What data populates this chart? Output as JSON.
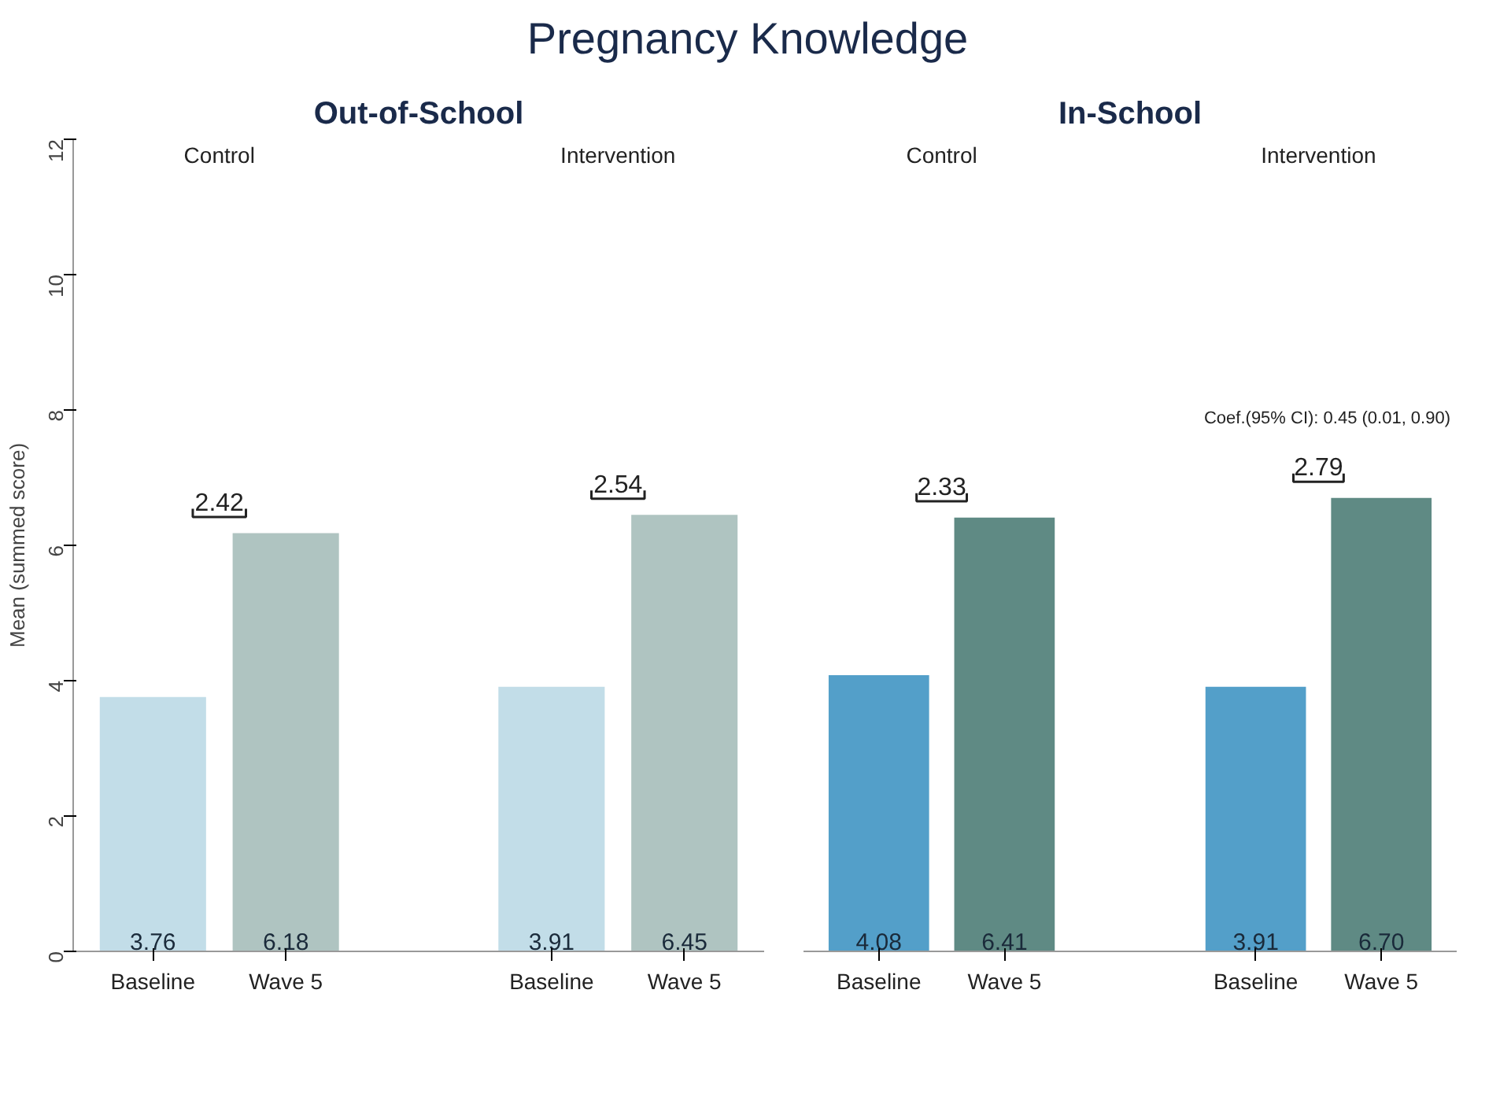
{
  "chart_data": [
    {
      "type": "bar",
      "title": "Pregnancy Knowledge",
      "subtitle": "Out-of-School",
      "ylabel": "Mean (summed score)",
      "categories": [
        "Baseline",
        "Wave 5",
        "Baseline",
        "Wave 5"
      ],
      "values": [
        3.76,
        6.18,
        3.91,
        6.45
      ],
      "value_labels": [
        "3.76",
        "6.18",
        "3.91",
        "6.45"
      ],
      "colors": [
        "#c2dde8",
        "#afc4c1",
        "#c2dde8",
        "#afc4c1"
      ],
      "ylim": [
        0,
        12
      ],
      "yticks": [
        0,
        2,
        4,
        6,
        8,
        10,
        12
      ],
      "grid": false,
      "annotations": [
        "Control",
        "Intervention",
        "2.42",
        "2.54"
      ]
    },
    {
      "type": "bar",
      "subtitle": "In-School",
      "categories": [
        "Baseline",
        "Wave 5",
        "Baseline",
        "Wave 5"
      ],
      "values": [
        4.08,
        6.41,
        3.91,
        6.7
      ],
      "value_labels": [
        "4.08",
        "6.41",
        "3.91",
        "6.70"
      ],
      "colors": [
        "#539fc9",
        "#5f8a84",
        "#539fc9",
        "#5f8a84"
      ],
      "ylim": [
        0,
        12
      ],
      "tick_labels": "x",
      "grid": false,
      "annotations": [
        "Control",
        "Intervention",
        "2.33",
        "2.79",
        "Coef.(95% CI): 0.45 (0.01, 0.90)"
      ]
    }
  ]
}
